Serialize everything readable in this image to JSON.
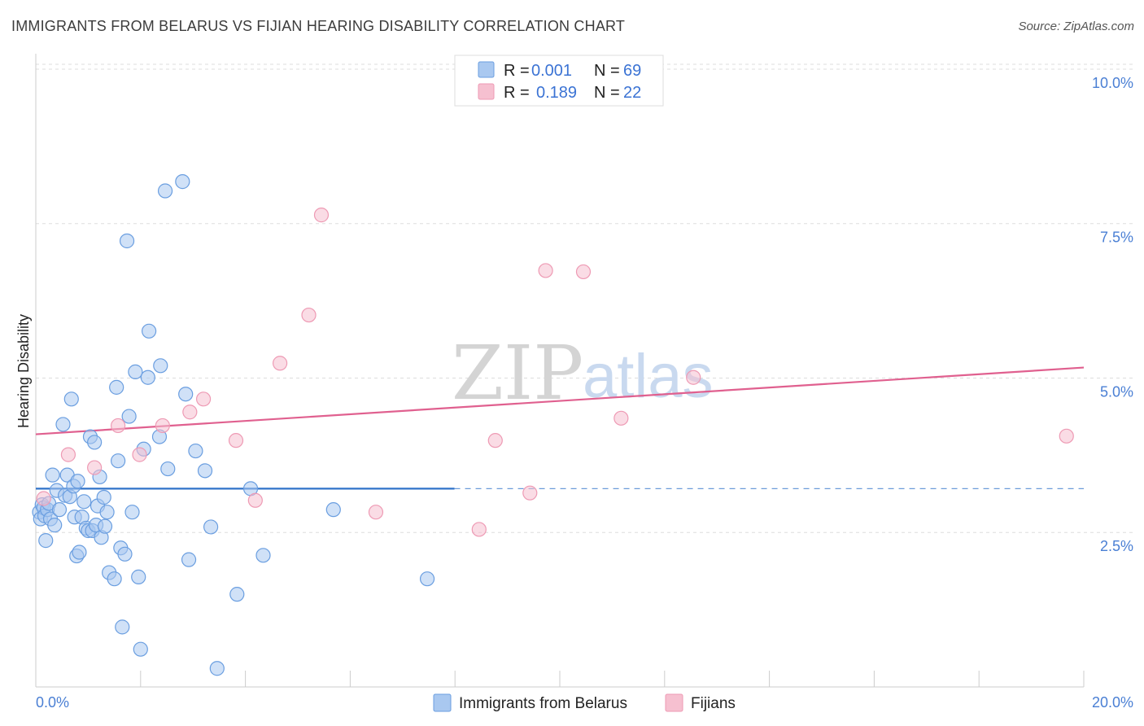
{
  "title": "IMMIGRANTS FROM BELARUS VS FIJIAN HEARING DISABILITY CORRELATION CHART",
  "source": "Source: ZipAtlas.com",
  "watermark": {
    "zip": "ZIP",
    "atlas": "atlas"
  },
  "legend_top": [
    {
      "r_label": "R =",
      "r_value": "0.001",
      "n_label": "N =",
      "n_value": "69"
    },
    {
      "r_label": "R =",
      "r_value": "0.189",
      "n_label": "N =",
      "n_value": "22"
    }
  ],
  "legend_bottom": [
    "Immigrants from Belarus",
    "Fijians"
  ],
  "colors": {
    "blue_fill": "#a9c8f0",
    "blue_stroke": "#6a9ee0",
    "blue_line": "#2f72c9",
    "pink_fill": "#f6c0d0",
    "pink_stroke": "#ee9ab4",
    "pink_line": "#e0608f",
    "tick_label": "#4a7fd4",
    "grid": "#dddddd"
  },
  "chart_data": {
    "type": "scatter",
    "title": "IMMIGRANTS FROM BELARUS VS FIJIAN HEARING DISABILITY CORRELATION CHART",
    "xlabel": "",
    "ylabel": "Hearing Disability",
    "xlim": [
      0,
      20
    ],
    "ylim": [
      0,
      10.25
    ],
    "x_tick_labels": [
      "0.0%",
      "20.0%"
    ],
    "y_ticks": [
      2.5,
      5.0,
      7.5,
      10.0
    ],
    "y_tick_labels": [
      "2.5%",
      "5.0%",
      "7.5%",
      "10.0%"
    ],
    "grid": "horizontal dashed",
    "legend_position": "top-center",
    "series": [
      {
        "name": "Immigrants from Belarus",
        "color": "blue",
        "trend": {
          "x": [
            0.0,
            7.99
          ],
          "y": [
            3.21,
            3.21
          ],
          "dashed_to_x": 20.0
        },
        "points": [
          [
            0.07,
            2.83
          ],
          [
            0.09,
            2.72
          ],
          [
            0.12,
            2.95
          ],
          [
            0.15,
            2.9
          ],
          [
            0.17,
            2.77
          ],
          [
            0.19,
            2.37
          ],
          [
            0.22,
            2.87
          ],
          [
            0.25,
            2.97
          ],
          [
            0.28,
            2.72
          ],
          [
            0.32,
            3.43
          ],
          [
            0.36,
            2.62
          ],
          [
            0.4,
            3.18
          ],
          [
            0.45,
            2.87
          ],
          [
            0.52,
            4.25
          ],
          [
            0.56,
            3.1
          ],
          [
            0.6,
            3.43
          ],
          [
            0.65,
            3.08
          ],
          [
            0.68,
            4.66
          ],
          [
            0.72,
            3.25
          ],
          [
            0.74,
            2.75
          ],
          [
            0.78,
            2.12
          ],
          [
            0.8,
            3.33
          ],
          [
            0.83,
            2.18
          ],
          [
            0.88,
            2.75
          ],
          [
            0.92,
            3.0
          ],
          [
            0.96,
            2.57
          ],
          [
            1.0,
            2.53
          ],
          [
            1.04,
            4.05
          ],
          [
            1.08,
            2.53
          ],
          [
            1.12,
            3.96
          ],
          [
            1.15,
            2.62
          ],
          [
            1.18,
            2.93
          ],
          [
            1.22,
            3.4
          ],
          [
            1.25,
            2.42
          ],
          [
            1.3,
            3.07
          ],
          [
            1.32,
            2.6
          ],
          [
            1.36,
            2.83
          ],
          [
            1.4,
            1.85
          ],
          [
            1.5,
            1.75
          ],
          [
            1.54,
            4.85
          ],
          [
            1.57,
            3.66
          ],
          [
            1.62,
            2.25
          ],
          [
            1.65,
            0.97
          ],
          [
            1.7,
            2.15
          ],
          [
            1.74,
            7.22
          ],
          [
            1.78,
            4.38
          ],
          [
            1.84,
            2.83
          ],
          [
            1.9,
            5.1
          ],
          [
            1.96,
            1.78
          ],
          [
            2.0,
            0.61
          ],
          [
            2.06,
            3.85
          ],
          [
            2.14,
            5.01
          ],
          [
            2.16,
            5.76
          ],
          [
            2.36,
            4.05
          ],
          [
            2.38,
            5.2
          ],
          [
            2.47,
            8.03
          ],
          [
            2.52,
            3.53
          ],
          [
            2.8,
            8.18
          ],
          [
            2.86,
            4.74
          ],
          [
            2.92,
            2.06
          ],
          [
            3.05,
            3.82
          ],
          [
            3.23,
            3.5
          ],
          [
            3.34,
            2.59
          ],
          [
            3.46,
            0.3
          ],
          [
            3.84,
            1.5
          ],
          [
            4.1,
            3.21
          ],
          [
            4.34,
            2.13
          ],
          [
            5.68,
            2.87
          ],
          [
            7.47,
            1.75
          ]
        ]
      },
      {
        "name": "Fijians",
        "color": "pink",
        "trend": {
          "x": [
            0.0,
            20.0
          ],
          "y": [
            4.09,
            5.17
          ]
        },
        "points": [
          [
            0.15,
            3.05
          ],
          [
            0.62,
            3.76
          ],
          [
            1.12,
            3.55
          ],
          [
            1.57,
            4.23
          ],
          [
            1.98,
            3.76
          ],
          [
            2.42,
            4.23
          ],
          [
            2.94,
            4.45
          ],
          [
            3.2,
            4.66
          ],
          [
            3.82,
            3.99
          ],
          [
            4.19,
            3.02
          ],
          [
            4.66,
            5.24
          ],
          [
            5.21,
            6.02
          ],
          [
            5.45,
            7.64
          ],
          [
            6.49,
            2.83
          ],
          [
            8.46,
            2.55
          ],
          [
            8.77,
            3.99
          ],
          [
            9.43,
            3.14
          ],
          [
            9.73,
            6.74
          ],
          [
            10.45,
            6.72
          ],
          [
            11.17,
            4.35
          ],
          [
            12.55,
            5.01
          ],
          [
            19.67,
            4.06
          ]
        ]
      }
    ]
  }
}
